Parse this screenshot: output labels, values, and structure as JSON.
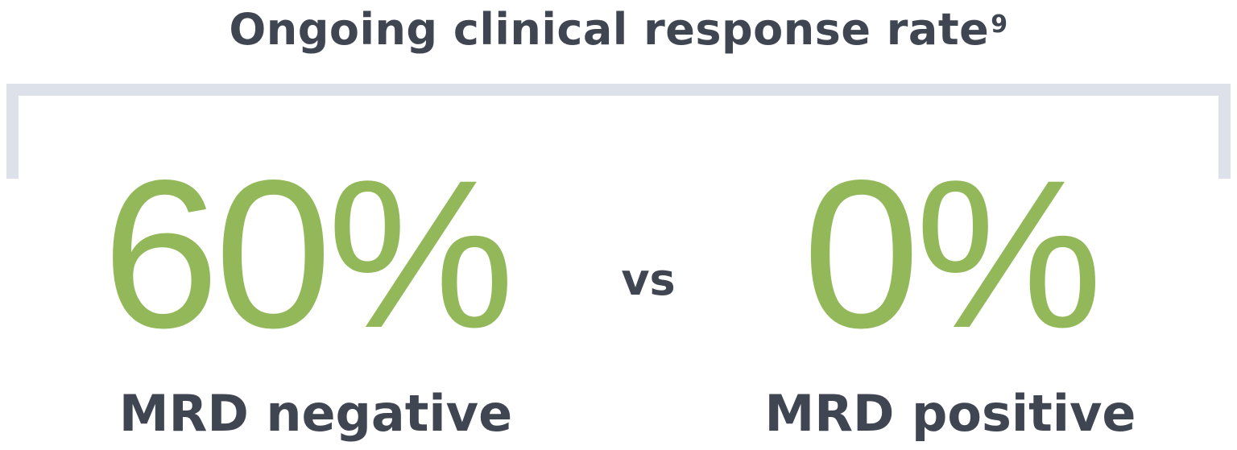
{
  "title": {
    "text": "Ongoing clinical response rate",
    "superscript": "9"
  },
  "comparison": {
    "left": {
      "value": "60%",
      "label": "MRD negative"
    },
    "separator": "vs",
    "right": {
      "value": "0%",
      "label": "MRD positive"
    }
  },
  "colors": {
    "heading_text": "#3f4652",
    "stat_green": "#93b85a",
    "bracket_gray": "#dde2ea"
  }
}
